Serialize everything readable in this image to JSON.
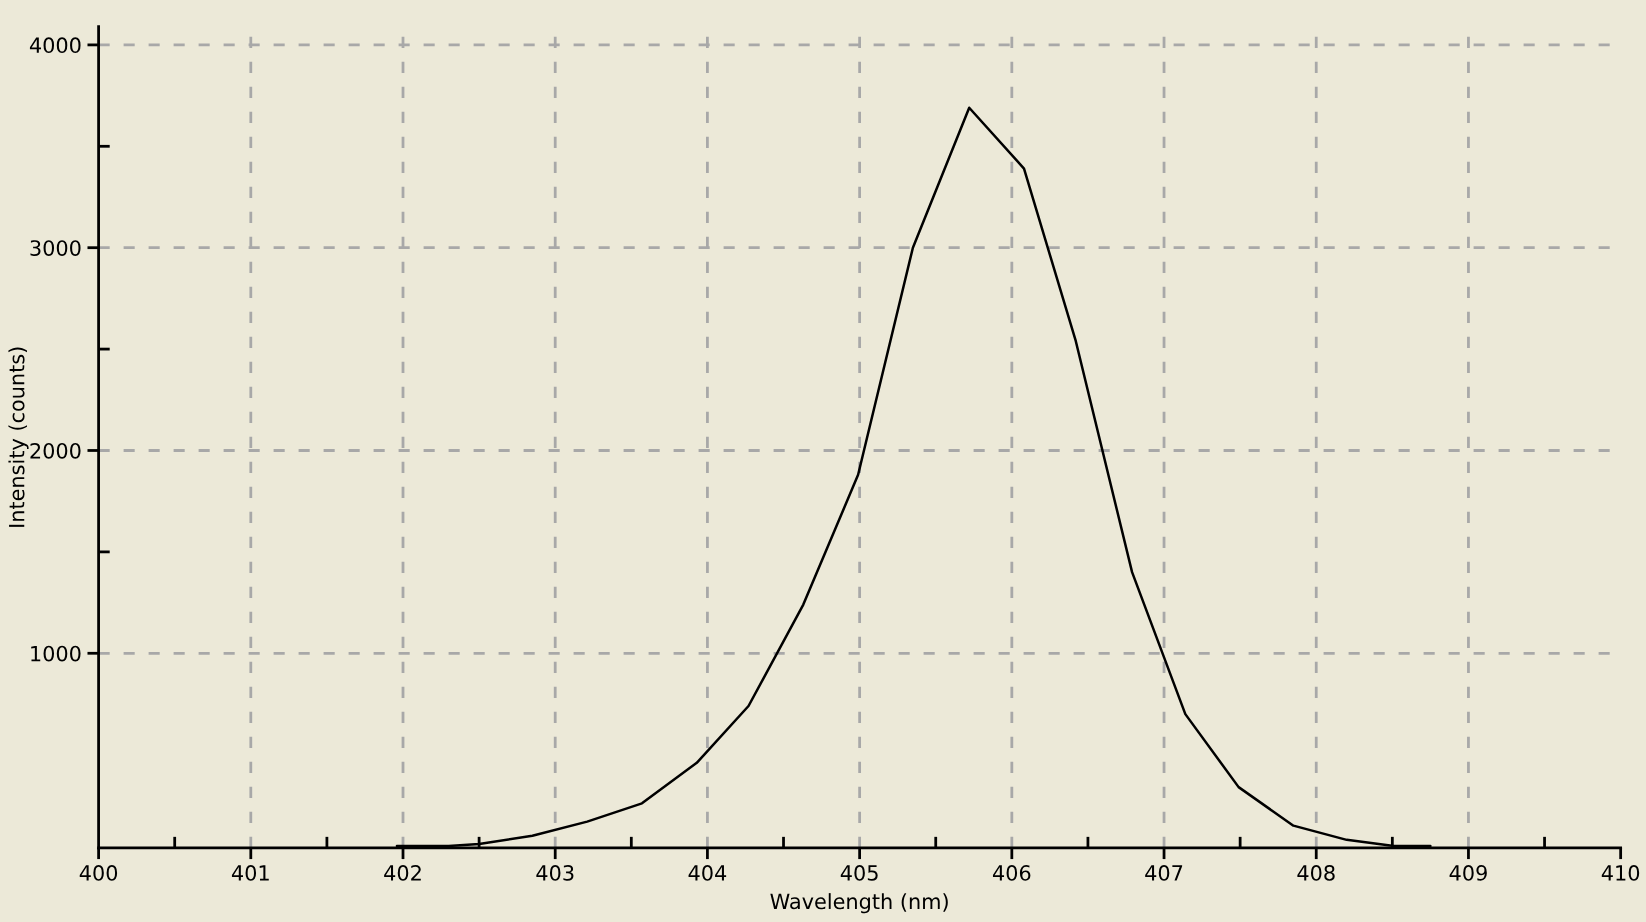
{
  "chart_data": {
    "type": "line",
    "xlabel": "Wavelength (nm)",
    "ylabel": "Intensity (counts)",
    "x": [
      401.96,
      402.3,
      402.5,
      402.85,
      403.21,
      403.57,
      403.93,
      404.27,
      404.63,
      404.99,
      405.35,
      405.72,
      406.08,
      406.42,
      406.79,
      407.14,
      407.49,
      407.85,
      408.2,
      408.51,
      408.75
    ],
    "series": [
      {
        "color": "#000000",
        "values": [
          50,
          50,
          60,
          100,
          170,
          260,
          460,
          740,
          1240,
          1880,
          3000,
          3690,
          3390,
          2540,
          1400,
          700,
          340,
          150,
          80,
          50,
          50
        ]
      }
    ],
    "xlim": [
      400,
      410
    ],
    "ylim": [
      40,
      4090
    ],
    "xticks": [
      400,
      {
        "value": 400.5,
        "label": null
      },
      401,
      {
        "value": 401.5,
        "label": null
      },
      402,
      {
        "value": 402.5,
        "label": null
      },
      403,
      {
        "value": 403.5,
        "label": null
      },
      404,
      {
        "value": 404.5,
        "label": null
      },
      405,
      {
        "value": 405.5,
        "label": null
      },
      406,
      {
        "value": 406.5,
        "label": null
      },
      407,
      {
        "value": 407.5,
        "label": null
      },
      408,
      {
        "value": 408.5,
        "label": null
      },
      409,
      {
        "value": 409.5,
        "label": null
      },
      410
    ],
    "yticks": [
      1000,
      {
        "value": 1500,
        "label": null
      },
      2000,
      {
        "value": 2500,
        "label": null
      },
      3000,
      {
        "value": 3500,
        "label": null
      },
      4000
    ],
    "grid": true
  }
}
